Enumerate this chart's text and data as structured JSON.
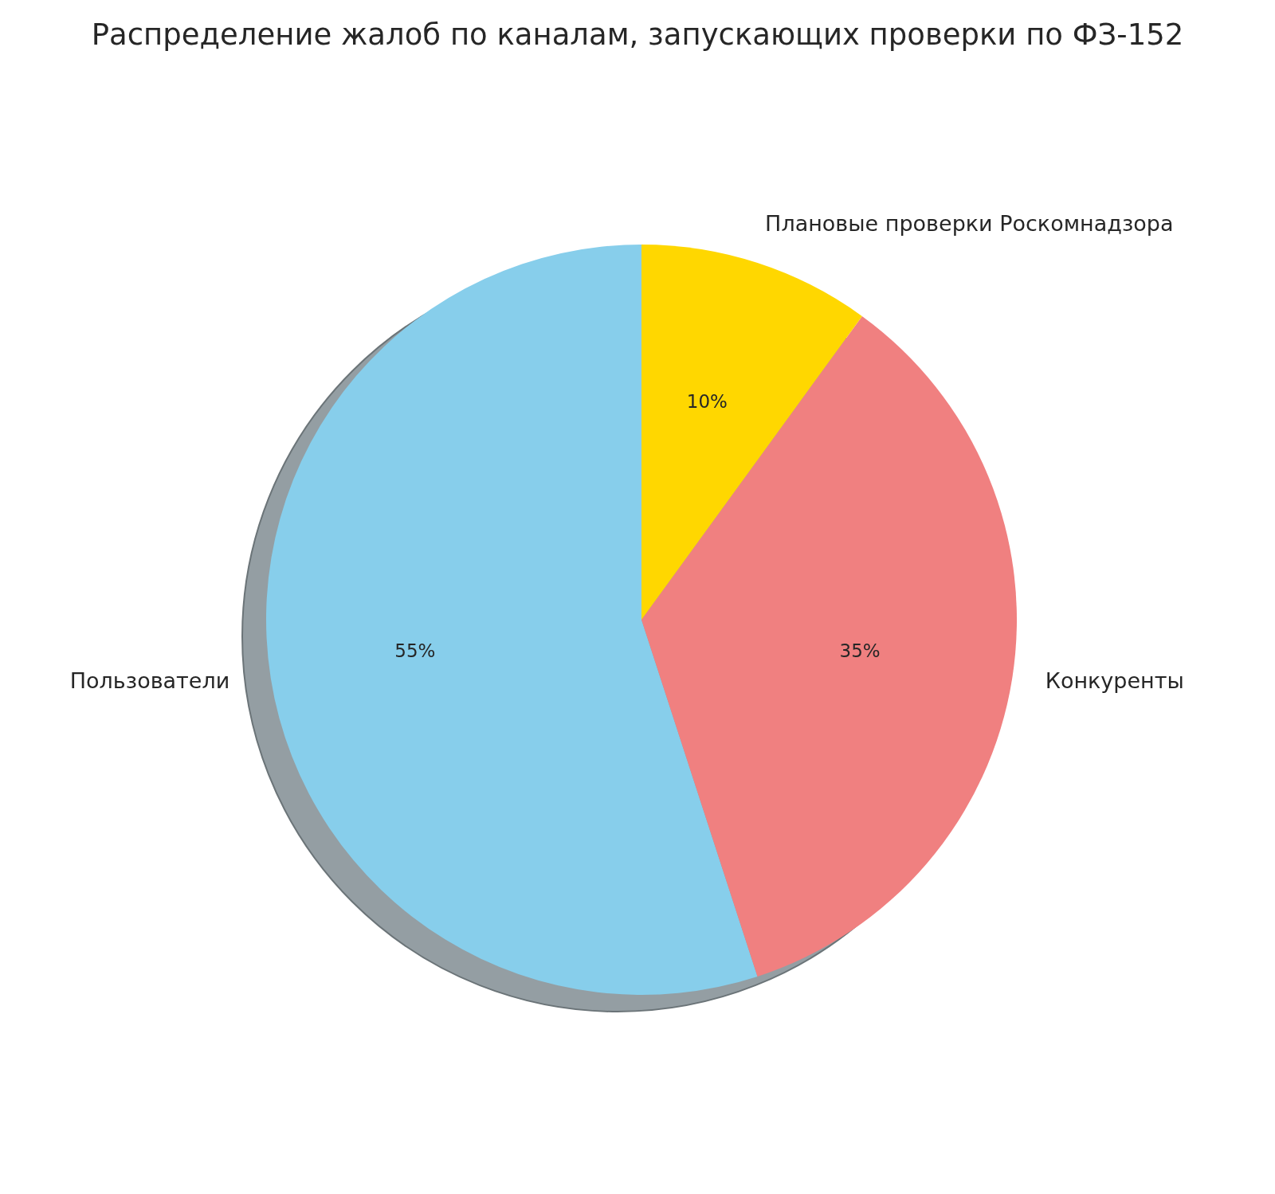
{
  "chart_data": {
    "type": "pie",
    "title": "Распределение жалоб по каналам, запускающих проверки по ФЗ-152",
    "categories": [
      "Пользователи",
      "Конкуренты",
      "Плановые проверки Роскомнадзора"
    ],
    "values": [
      55,
      35,
      10
    ],
    "colors": [
      "#87ceeb",
      "#f08080",
      "#ffd700"
    ],
    "value_labels": [
      "55%",
      "35%",
      "10%"
    ]
  }
}
